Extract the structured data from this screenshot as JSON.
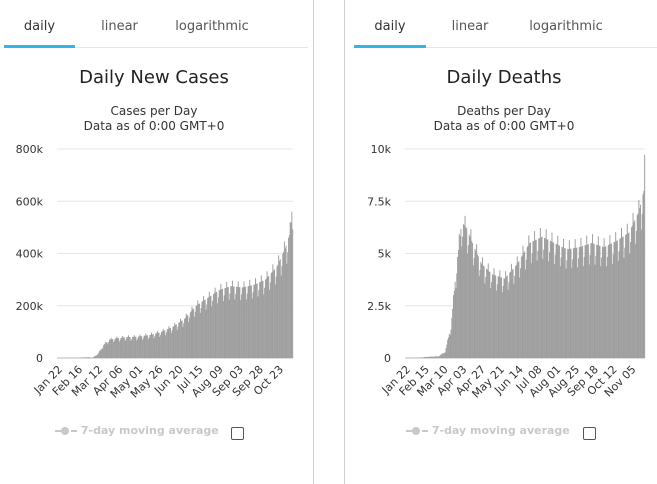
{
  "tabs": {
    "daily": "daily",
    "linear": "linear",
    "logarithmic": "logarithmic"
  },
  "legend": {
    "label": "7-day moving average"
  },
  "colors": {
    "bars": "#9e9e9e",
    "tab_active": "#33b5e5",
    "grid": "#e6e6e6"
  },
  "chart_data": [
    {
      "type": "bar",
      "title": "Daily New Cases",
      "subtitle": "Cases per Day",
      "subtitle2": "Data as of 0:00 GMT+0",
      "ylim": [
        0,
        800000
      ],
      "y_ticks": [
        0,
        200000,
        400000,
        600000,
        800000
      ],
      "y_tick_labels": [
        "0",
        "200k",
        "400k",
        "600k",
        "800k"
      ],
      "x_tick_labels": [
        "Jan 22",
        "Feb 16",
        "Mar 12",
        "Apr 06",
        "May 01",
        "May 26",
        "Jun 20",
        "Jul 15",
        "Aug 09",
        "Sep 03",
        "Sep 28",
        "Oct 23"
      ],
      "grid": true,
      "legend": "bottom",
      "days": 286,
      "anchors": [
        [
          0,
          0
        ],
        [
          25,
          800
        ],
        [
          29,
          2000
        ],
        [
          39,
          3000
        ],
        [
          42,
          0
        ],
        [
          49,
          15000
        ],
        [
          56,
          50000
        ],
        [
          63,
          70000
        ],
        [
          70,
          75000
        ],
        [
          84,
          80000
        ],
        [
          98,
          82000
        ],
        [
          112,
          88000
        ],
        [
          126,
          100000
        ],
        [
          140,
          120000
        ],
        [
          154,
          150000
        ],
        [
          168,
          200000
        ],
        [
          182,
          230000
        ],
        [
          196,
          260000
        ],
        [
          210,
          275000
        ],
        [
          224,
          270000
        ],
        [
          238,
          280000
        ],
        [
          252,
          300000
        ],
        [
          266,
          350000
        ],
        [
          276,
          420000
        ],
        [
          282,
          480000
        ],
        [
          285,
          600000
        ]
      ]
    },
    {
      "type": "bar",
      "title": "Daily Deaths",
      "subtitle": "Deaths per Day",
      "subtitle2": "Data as of 0:00 GMT+0",
      "ylim": [
        0,
        10000
      ],
      "y_ticks": [
        0,
        2500,
        5000,
        7500,
        10000
      ],
      "y_tick_labels": [
        "0",
        "2.5k",
        "5k",
        "7.5k",
        "10k"
      ],
      "x_tick_labels": [
        "Jan 22",
        "Feb 15",
        "Mar 10",
        "Apr 03",
        "Apr 27",
        "May 21",
        "Jun 14",
        "Jul 08",
        "Aug 01",
        "Aug 25",
        "Sep 18",
        "Oct 12",
        "Nov 05"
      ],
      "grid": true,
      "legend": "bottom",
      "days": 290,
      "anchors": [
        [
          0,
          0
        ],
        [
          20,
          20
        ],
        [
          24,
          50
        ],
        [
          40,
          80
        ],
        [
          48,
          300
        ],
        [
          55,
          1500
        ],
        [
          62,
          4500
        ],
        [
          68,
          6500
        ],
        [
          74,
          6200
        ],
        [
          81,
          5500
        ],
        [
          92,
          4500
        ],
        [
          105,
          4000
        ],
        [
          120,
          3800
        ],
        [
          135,
          4500
        ],
        [
          150,
          5500
        ],
        [
          165,
          5800
        ],
        [
          180,
          5500
        ],
        [
          195,
          5200
        ],
        [
          210,
          5300
        ],
        [
          225,
          5500
        ],
        [
          240,
          5300
        ],
        [
          255,
          5600
        ],
        [
          270,
          6000
        ],
        [
          282,
          7000
        ],
        [
          288,
          8000
        ],
        [
          289,
          9000
        ]
      ]
    }
  ]
}
